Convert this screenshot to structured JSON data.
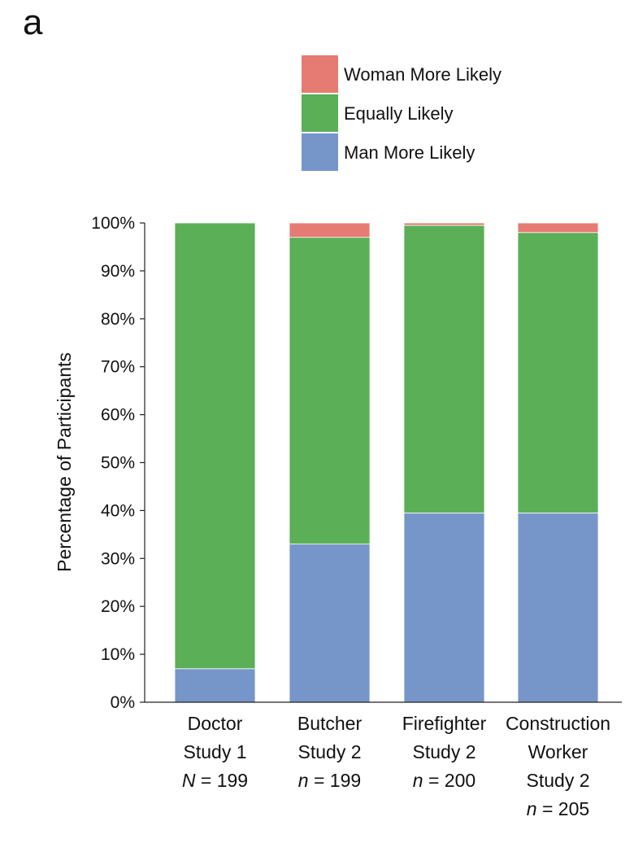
{
  "panel_label": "a",
  "chart_data": {
    "type": "bar",
    "stacked": true,
    "percent": true,
    "categories": [
      [
        "Doctor",
        "Study 1",
        "N = 199"
      ],
      [
        "Butcher",
        "Study 2",
        "n = 199"
      ],
      [
        "Firefighter",
        "Study 2",
        "n = 200"
      ],
      [
        "Construction",
        "Worker",
        "Study 2",
        "n = 205"
      ]
    ],
    "series": [
      {
        "name": "Man More Likely",
        "color": "#7696c9",
        "values": [
          7,
          33,
          39.5,
          39.5
        ]
      },
      {
        "name": "Equally Likely",
        "color": "#5aaf57",
        "values": [
          93,
          64,
          60,
          58.5
        ]
      },
      {
        "name": "Woman More Likely",
        "color": "#e57b72",
        "values": [
          0,
          3,
          0.5,
          2
        ]
      }
    ],
    "legend_order": [
      "Woman More Likely",
      "Equally Likely",
      "Man More Likely"
    ],
    "legend_position": "top-right",
    "ylabel": "Percentage of Participants",
    "xlabel": "",
    "ylim": [
      0,
      100
    ],
    "yticks": [
      "0%",
      "10%",
      "20%",
      "30%",
      "40%",
      "50%",
      "60%",
      "70%",
      "80%",
      "90%",
      "100%"
    ],
    "grid": false
  }
}
